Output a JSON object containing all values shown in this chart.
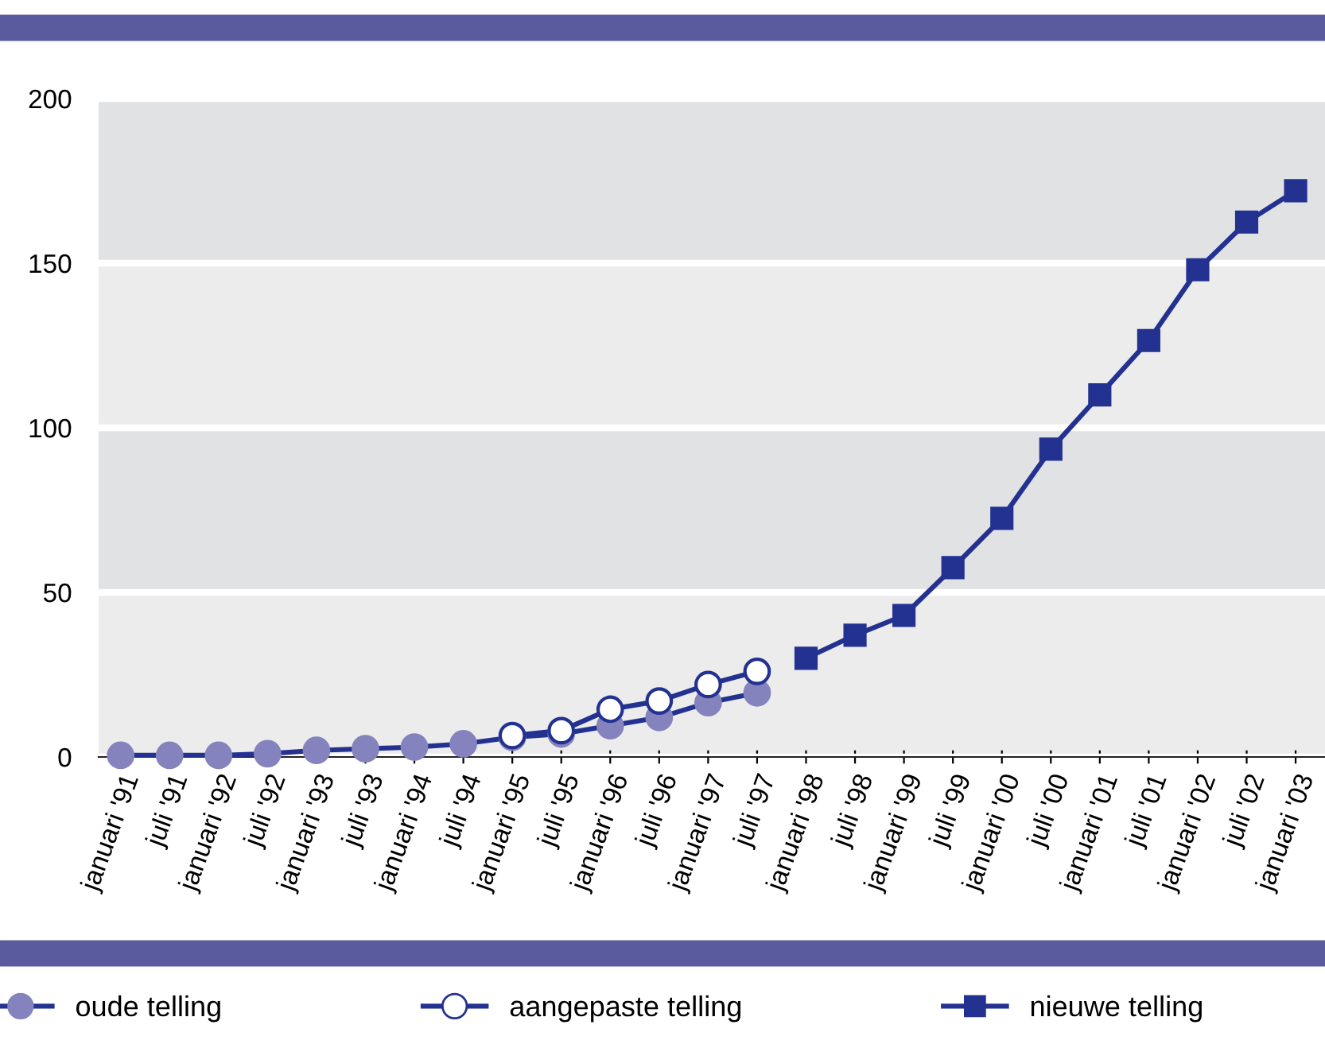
{
  "chart_data": {
    "type": "line",
    "categories": [
      "januari '91",
      "juli '91",
      "januari '92",
      "juli '92",
      "januari '93",
      "juli '93",
      "januari '94",
      "juli '94",
      "januari '95",
      "juli '95",
      "januari '96",
      "juli '96",
      "januari '97",
      "juli '97",
      "januari '98",
      "juli '98",
      "januari '99",
      "juli '99",
      "januari '00",
      "juli '00",
      "januari '01",
      "juli '01",
      "januari '02",
      "juli '02",
      "januari '03"
    ],
    "series": [
      {
        "name": "oude telling",
        "color": "#233191",
        "colors": [
          "#8583bd",
          "#8583bd",
          "#8583bd",
          "#8583bd",
          "#8583bd",
          "#8583bd",
          "#8583bd",
          "#8583bd",
          "#8583bd",
          "#8583bd",
          "#8583bd",
          "#8583bd",
          "#8583bd",
          "#8583bd",
          null,
          null,
          null,
          null,
          null,
          null,
          null,
          null,
          null,
          null,
          null
        ],
        "marker": "circle",
        "values": [
          0.5,
          0.5,
          0.5,
          1,
          2,
          2.5,
          3,
          4,
          6,
          7,
          9.5,
          12,
          16.5,
          19.5,
          null,
          null,
          null,
          null,
          null,
          null,
          null,
          null,
          null,
          null,
          null
        ]
      },
      {
        "name": "aangepaste telling",
        "color": "#233191",
        "colors": [
          null,
          null,
          null,
          null,
          null,
          null,
          null,
          null,
          "#ffffff",
          "#ffffff",
          "#ffffff",
          "#ffffff",
          "#ffffff",
          "#ffffff",
          null,
          null,
          null,
          null,
          null,
          null,
          null,
          null,
          null,
          null,
          null
        ],
        "marker": "circle",
        "values": [
          null,
          null,
          null,
          null,
          null,
          null,
          null,
          null,
          6.5,
          8,
          14.5,
          17,
          22,
          26,
          null,
          null,
          null,
          null,
          null,
          null,
          null,
          null,
          null,
          null,
          null
        ]
      },
      {
        "name": "nieuwe telling",
        "color": "#233191",
        "marker": "square",
        "values": [
          null,
          null,
          null,
          null,
          null,
          null,
          null,
          null,
          null,
          null,
          null,
          null,
          null,
          null,
          30,
          37,
          43,
          57.5,
          72.5,
          93.5,
          110,
          126.5,
          148,
          162.5,
          172
        ]
      }
    ],
    "ylim": [
      0,
      200
    ],
    "yticks": [
      0,
      50,
      100,
      150,
      200
    ],
    "grid": "y",
    "legend": "bottom"
  }
}
